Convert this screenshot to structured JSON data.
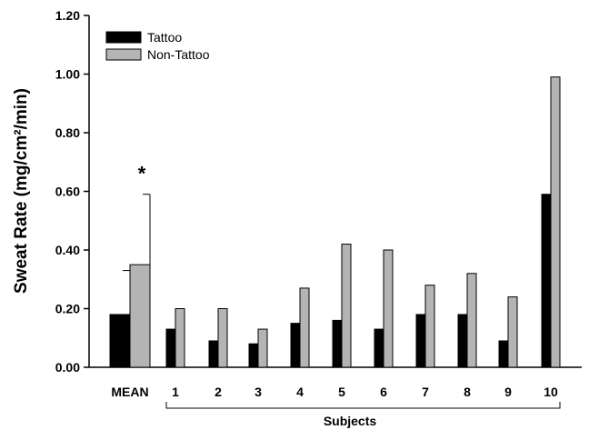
{
  "chart_data": {
    "type": "bar",
    "ylabel": "Sweat Rate (mg/cm²/min)",
    "xlabel": "Subjects",
    "ylim": [
      0,
      1.2
    ],
    "yticks": [
      "0.00",
      "0.20",
      "0.40",
      "0.60",
      "0.80",
      "1.00",
      "1.20"
    ],
    "yticks_values": [
      0,
      0.2,
      0.4,
      0.6,
      0.8,
      1.0,
      1.2
    ],
    "categories": [
      "MEAN",
      "1",
      "2",
      "3",
      "4",
      "5",
      "6",
      "7",
      "8",
      "9",
      "10"
    ],
    "series": [
      {
        "name": "Tattoo",
        "color": "#000000",
        "values": [
          0.18,
          0.13,
          0.09,
          0.08,
          0.15,
          0.16,
          0.13,
          0.18,
          0.18,
          0.09,
          0.59
        ],
        "error_upper": [
          0.33,
          null,
          null,
          null,
          null,
          null,
          null,
          null,
          null,
          null,
          null
        ]
      },
      {
        "name": "Non-Tattoo",
        "color": "#b4b4b4",
        "values": [
          0.35,
          0.2,
          0.2,
          0.13,
          0.27,
          0.42,
          0.4,
          0.28,
          0.32,
          0.24,
          0.99
        ],
        "error_upper": [
          0.59,
          null,
          null,
          null,
          null,
          null,
          null,
          null,
          null,
          null,
          null
        ]
      }
    ],
    "annotations": [
      {
        "text": "*",
        "category": "MEAN",
        "series": "Non-Tattoo",
        "y": 0.68
      }
    ],
    "legend_position": "top-left",
    "grid": false
  }
}
